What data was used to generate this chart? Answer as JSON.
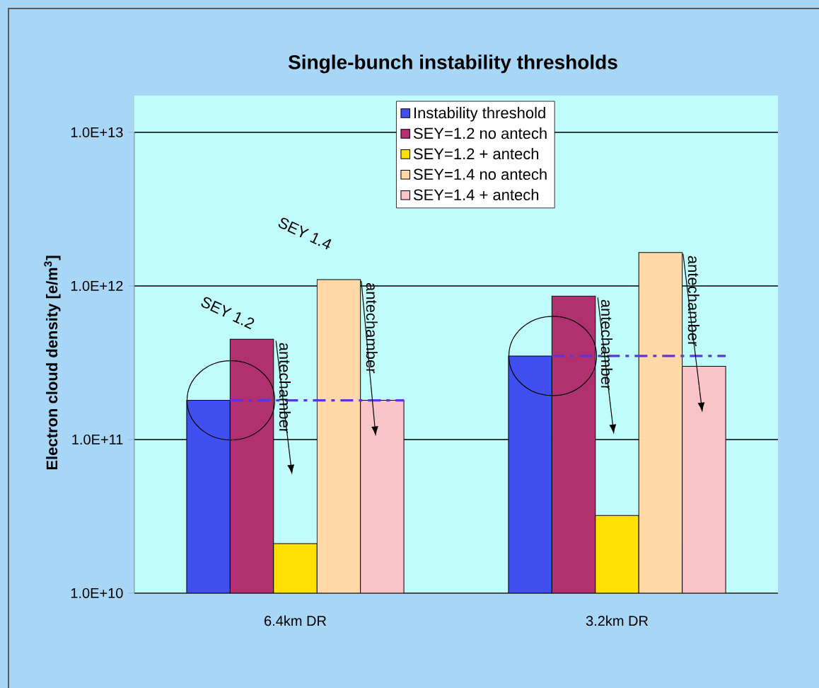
{
  "chart_data": {
    "type": "bar",
    "title": "Single-bunch instability thresholds",
    "ylabel": "Electron cloud density  [e/m$^{3}$]",
    "categories": [
      "6.4km DR",
      "3.2km DR"
    ],
    "series": [
      {
        "name": "Instability threshold",
        "color": "#4050f0",
        "values": [
          180000000000.0,
          350000000000.0
        ]
      },
      {
        "name": "SEY=1.2 no antech",
        "color": "#b03070",
        "values": [
          450000000000.0,
          860000000000.0
        ]
      },
      {
        "name": "SEY=1.2 + antech",
        "color": "#ffe000",
        "values": [
          21000000000.0,
          32000000000.0
        ]
      },
      {
        "name": "SEY=1.4 no antech",
        "color": "#ffd8a8",
        "values": [
          1100000000000.0,
          1650000000000.0
        ]
      },
      {
        "name": "SEY=1.4 + antech",
        "color": "#f9c4c8",
        "values": [
          180000000000.0,
          300000000000.0
        ]
      }
    ],
    "log": true,
    "ylim": [
      10000000000.0,
      10000000000000.0
    ],
    "yticks": [
      {
        "value": 10000000000.0,
        "label": "1.0E+10"
      },
      {
        "value": 100000000000.0,
        "label": "1.0E+11"
      },
      {
        "value": 1000000000000.0,
        "label": "1.0E+12"
      },
      {
        "value": 10000000000000.0,
        "label": "1.0E+13"
      }
    ],
    "grid": "y",
    "legend": "top",
    "ref_lines": [
      {
        "axis": "y",
        "value": 180000000000.0,
        "color": "#5a35e0",
        "line_style": "dashed"
      },
      {
        "axis": "y",
        "value": 350000000000.0,
        "color": "#5a35e0",
        "line_style": "dashed"
      }
    ],
    "annotations": [
      "SEY 1.2",
      "SEY 1.4",
      "antechamber",
      "antechamber",
      "antechamber",
      "antechamber"
    ]
  }
}
